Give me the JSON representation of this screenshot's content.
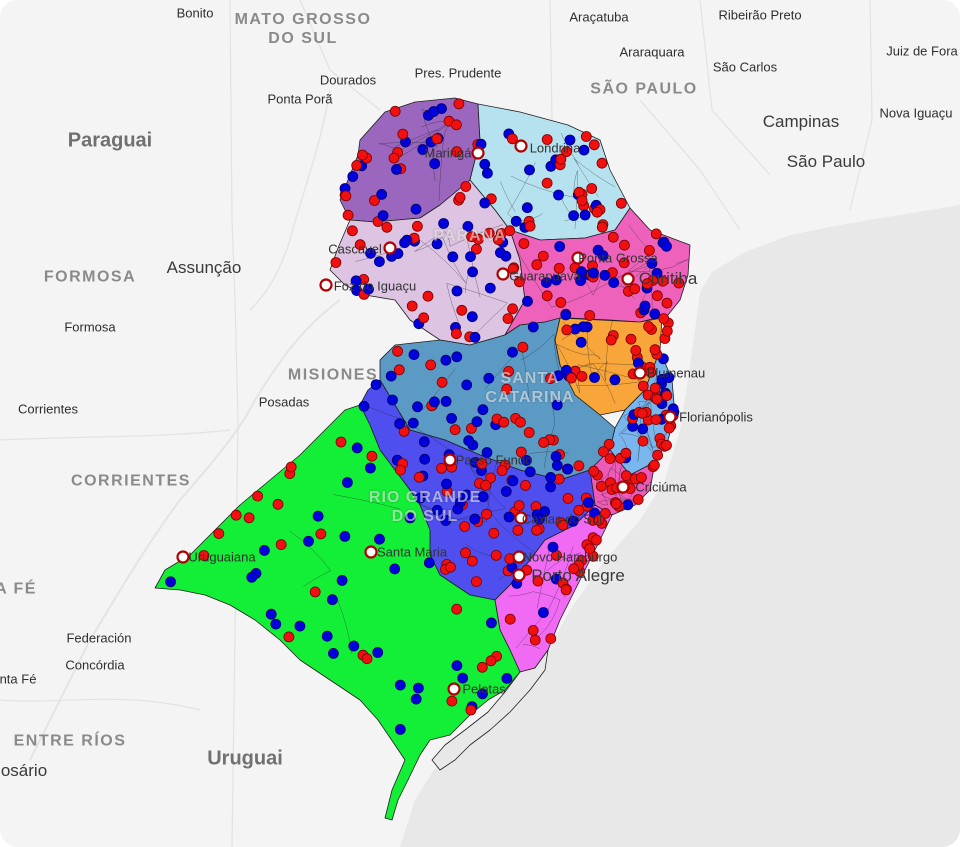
{
  "map": {
    "labels": {
      "mato_grosso_do_sul": "MATO GROSSO\nDO SUL",
      "bonito": "Bonito",
      "dourados": "Dourados",
      "ponta_pora": "Ponta Porã",
      "pres_prudente": "Pres. Prudente",
      "aracatuba": "Araçatuba",
      "ribeirao_preto": "Ribeirão Preto",
      "araraquara": "Araraquara",
      "sao_carlos": "São Carlos",
      "juiz_de_fora": "Juiz de Fora",
      "sao_paulo_state": "SÃO PAULO",
      "campinas": "Campinas",
      "nova_iguacu": "Nova Iguaçu",
      "sao_paulo_city": "São Paulo",
      "paraguai": "Paraguai",
      "formosa_region": "FORMOSA",
      "assuncao": "Assunção",
      "formosa_city": "Formosa",
      "misiones": "MISIONES",
      "posadas": "Posadas",
      "corrientes_city": "Corrientes",
      "corrientes_region": "CORRIENTES",
      "santa_fe": "A FÉ",
      "federacion": "Federación",
      "concordia": "Concórdia",
      "santa_fe_city": "nta Fé",
      "entre_rios": "ENTRE RÍOS",
      "uruguai": "Uruguai",
      "rosario": "osário",
      "parana": "PARANÁ",
      "maringa": "Maringá",
      "londrina": "Londrina",
      "cascavel": "Cascavel",
      "foz": "Foz do Iguaçu",
      "guarapuava": "Guarapuava",
      "ponta_grossa": "Ponta Grossa",
      "curitiba": "Curitiba",
      "santa_catarina": "SANTA\nCATARINA",
      "blumenau": "Blumenau",
      "florianopolis": "Florianópolis",
      "passo_fundo": "Passo Fundo",
      "criciuma": "Criciúma",
      "rio_grande_do_sul": "RIO GRANDE\nDO SUL",
      "caxias": "Caxias do Sul",
      "novo_hamburgo": "Novo Hamburgo",
      "porto_alegre": "Porto Alegre",
      "santa_maria": "Santa Maria",
      "uruguaiana": "Uruguaiana",
      "pelotas": "Pelotas"
    },
    "colors": {
      "background": "#f4f4f4",
      "ocean": "#e9e9e9",
      "border_lines": "#e2e2e2",
      "region_outline": "#1f1f1f",
      "rs_green": "#13ee36",
      "rs_blue": "#4f4ff0",
      "rs_magenta": "#f16af4",
      "sc_steel": "#5b9ac4",
      "sc_sky": "#79b6ee",
      "sc_orange": "#f8a63a",
      "sc_pink": "#ee5ab8",
      "pr_pink": "#ee62bc",
      "pr_lightblue": "#b6e2ef",
      "pr_lavender": "#dcc4e2",
      "pr_purple": "#9a66be",
      "marker_red": "#f01010",
      "marker_blue": "#0000dd",
      "marker_city": "#ffffff"
    },
    "legend_markers": {
      "red_name": "",
      "blue_name": ""
    }
  }
}
